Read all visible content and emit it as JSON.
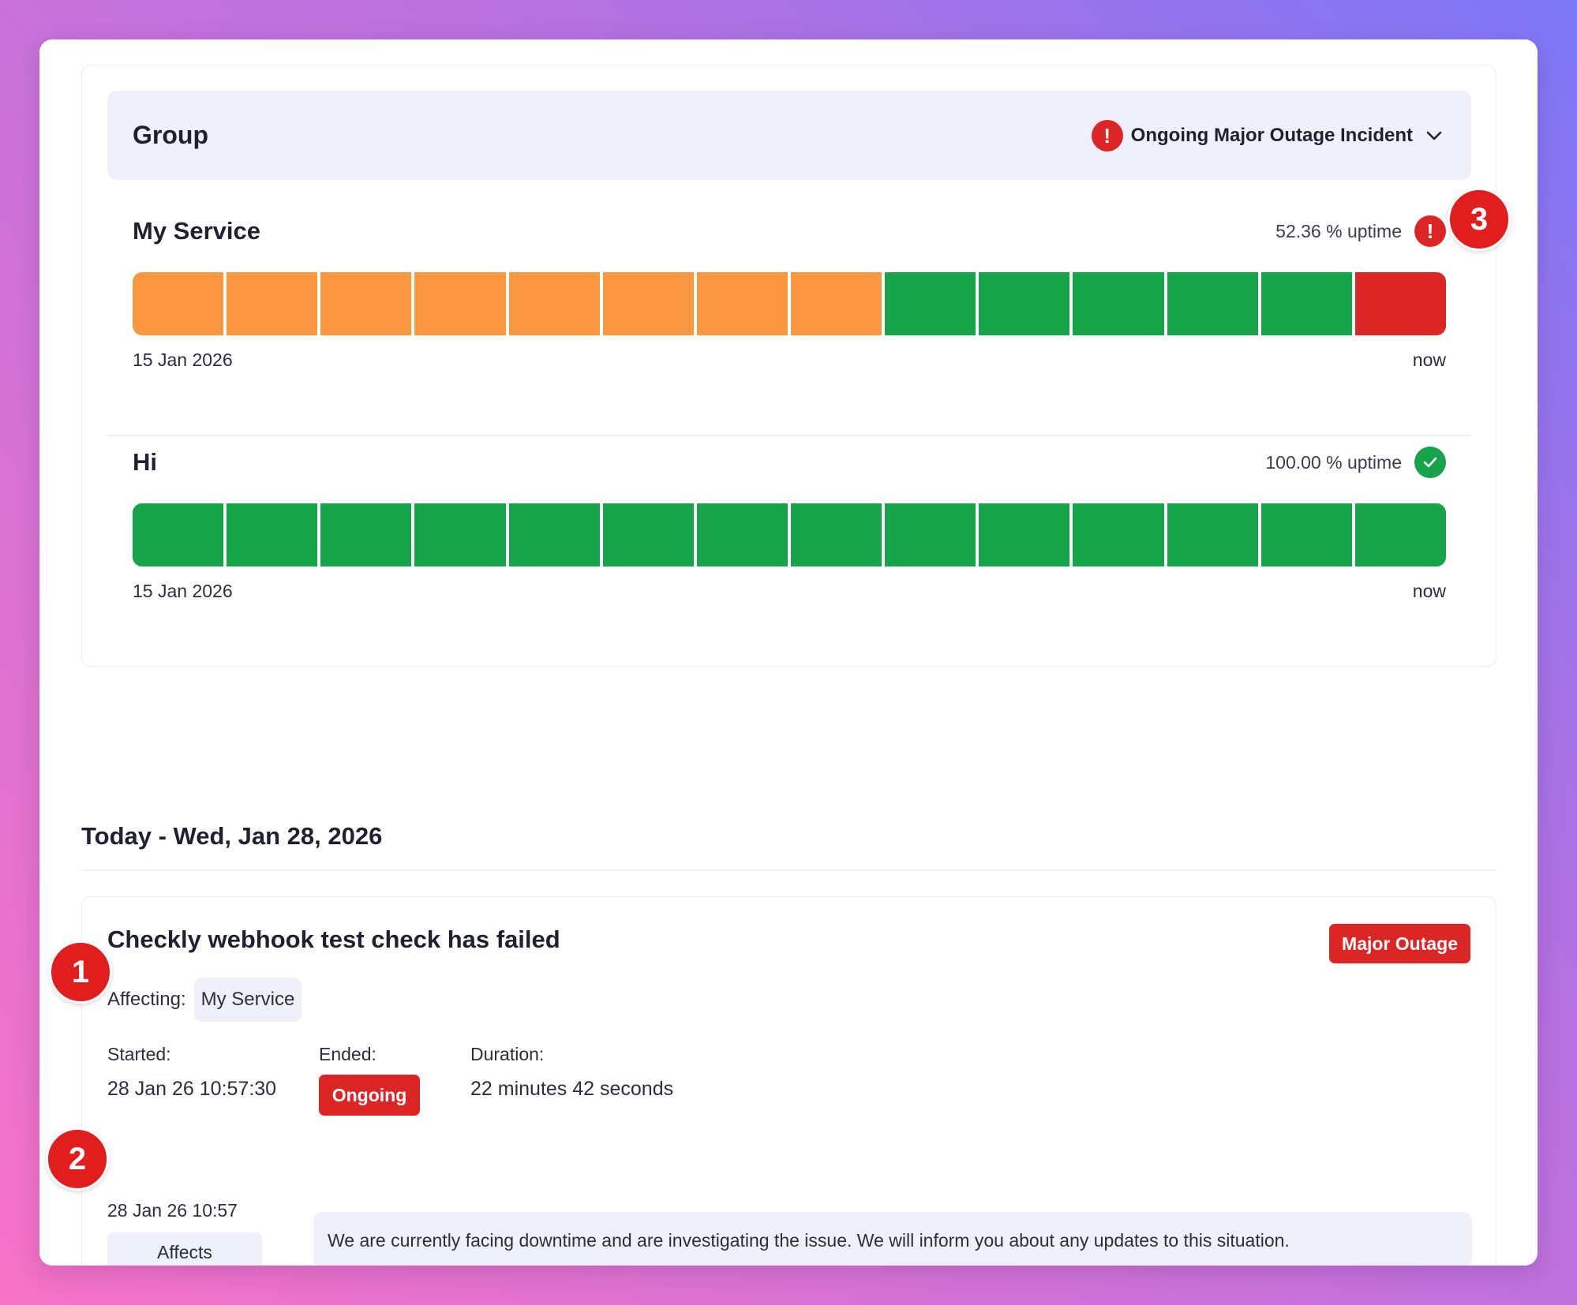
{
  "group": {
    "title": "Group",
    "incident_label": "Ongoing Major Outage Incident"
  },
  "services": [
    {
      "name": "My Service",
      "uptime": "52.36 % uptime",
      "status": "alert",
      "start_label": "15 Jan 2026",
      "end_label": "now",
      "segments": [
        "degraded",
        "degraded",
        "degraded",
        "degraded",
        "degraded",
        "degraded",
        "degraded",
        "degraded",
        "operational",
        "operational",
        "operational",
        "operational",
        "operational",
        "outage"
      ]
    },
    {
      "name": "Hi",
      "uptime": "100.00 % uptime",
      "status": "ok",
      "start_label": "15 Jan 2026",
      "end_label": "now",
      "segments": [
        "operational",
        "operational",
        "operational",
        "operational",
        "operational",
        "operational",
        "operational",
        "operational",
        "operational",
        "operational",
        "operational",
        "operational",
        "operational",
        "operational"
      ]
    }
  ],
  "colors": {
    "degraded": "#fb9641",
    "operational": "#16a34a",
    "outage": "#dc2626"
  },
  "day": {
    "title": "Today - Wed, Jan 28, 2026"
  },
  "incident": {
    "title": "Checkly webhook test check has failed",
    "badge": "Major Outage",
    "affecting_label": "Affecting:",
    "affected_service": "My Service",
    "started_label": "Started:",
    "started_value": "28 Jan 26 10:57:30",
    "ended_label": "Ended:",
    "ended_value": "Ongoing",
    "duration_label": "Duration:",
    "duration_value": "22 minutes 42 seconds",
    "update": {
      "time": "28 Jan 26 10:57",
      "tag": "Affects",
      "message": "We are currently facing downtime and are investigating the issue. We will inform you about any updates to this situation."
    }
  },
  "markers": {
    "one": "1",
    "two": "2",
    "three": "3"
  }
}
